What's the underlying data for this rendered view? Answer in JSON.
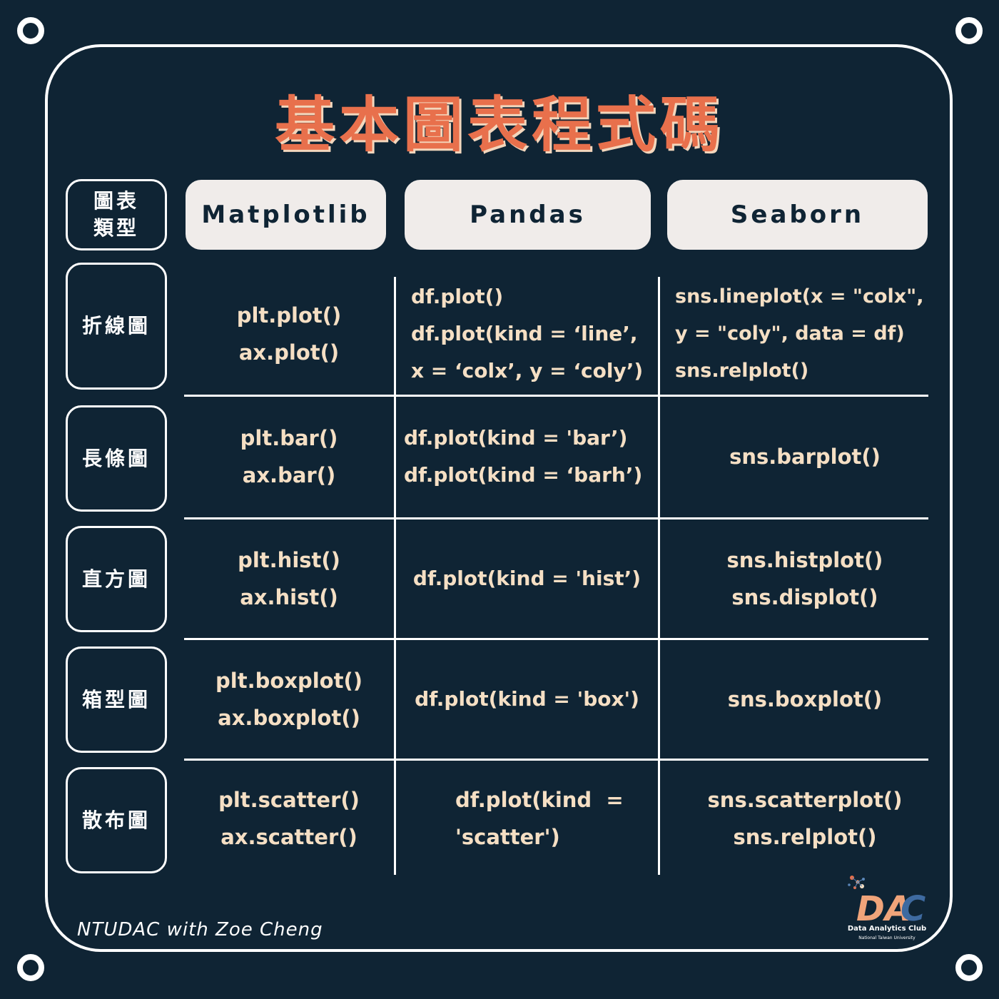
{
  "title": "基本圖表程式碼",
  "headers": {
    "type_label": "圖表類型",
    "matplotlib": "Matplotlib",
    "pandas": "Pandas",
    "seaborn": "Seaborn"
  },
  "rows": [
    {
      "label": "折線圖",
      "matplotlib": [
        "plt.plot()",
        "ax.plot()"
      ],
      "pandas": [
        "df.plot()",
        "df.plot(kind = ‘line’,",
        "x = ‘colx’, y = ‘coly’)"
      ],
      "seaborn": [
        "sns.lineplot(x = \"colx\",",
        "y = \"coly\", data = df)",
        "sns.relplot()"
      ]
    },
    {
      "label": "長條圖",
      "matplotlib": [
        "plt.bar()",
        "ax.bar()"
      ],
      "pandas": [
        "df.plot(kind = 'bar’)",
        "df.plot(kind =  ‘barh’)"
      ],
      "seaborn": [
        "sns.barplot()"
      ]
    },
    {
      "label": "直方圖",
      "matplotlib": [
        "plt.hist()",
        "ax.hist()"
      ],
      "pandas": [
        "df.plot(kind = 'hist’)"
      ],
      "seaborn": [
        "sns.histplot()",
        "sns.displot()"
      ]
    },
    {
      "label": "箱型圖",
      "matplotlib": [
        "plt.boxplot()",
        "ax.boxplot()"
      ],
      "pandas": [
        "df.plot(kind = 'box')"
      ],
      "seaborn": [
        "sns.boxplot()"
      ]
    },
    {
      "label": "散布圖",
      "matplotlib": [
        "plt.scatter()",
        "ax.scatter()"
      ],
      "pandas": [
        "df.plot(kind  =",
        "'scatter')"
      ],
      "seaborn": [
        "sns.scatterplot()",
        "sns.relplot()"
      ]
    }
  ],
  "credit": "NTUDAC with Zoe Cheng",
  "logo": {
    "mark": "DAC",
    "name": "Data Analytics Club",
    "subtitle": "National Taiwan University"
  },
  "colors": {
    "background": "#0f2434",
    "title": "#e8704c",
    "code_text": "#f5dfc4",
    "header_box": "#f0ecea",
    "line": "#ffffff"
  }
}
